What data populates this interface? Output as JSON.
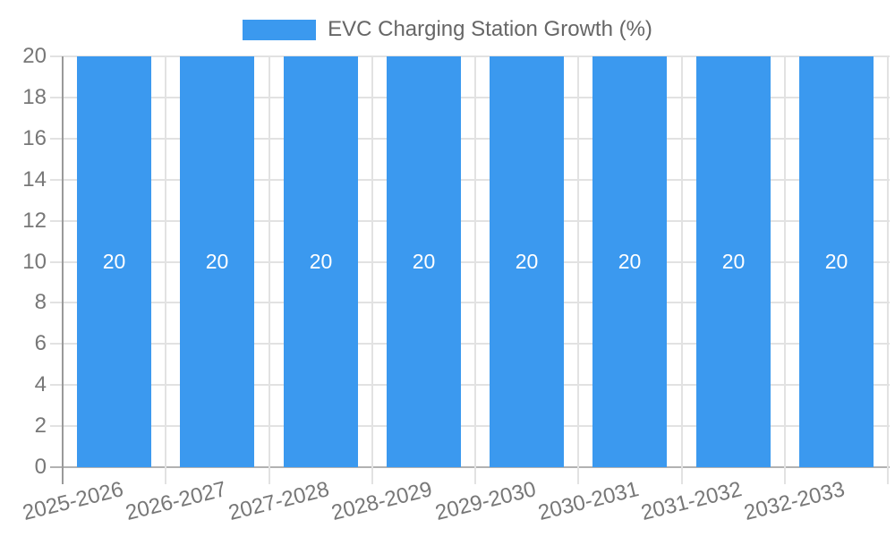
{
  "legend": {
    "label": "EVC Charging Station Growth (%)"
  },
  "chart_data": {
    "type": "bar",
    "title": "EVC Charging Station Growth (%)",
    "categories": [
      "2025-2026",
      "2026-2027",
      "2027-2028",
      "2028-2029",
      "2029-2030",
      "2030-2031",
      "2031-2032",
      "2032-2033"
    ],
    "series": [
      {
        "name": "EVC Charging Station Growth (%)",
        "values": [
          20,
          20,
          20,
          20,
          20,
          20,
          20,
          20
        ]
      }
    ],
    "bar_labels": [
      "20",
      "20",
      "20",
      "20",
      "20",
      "20",
      "20",
      "20"
    ],
    "xlabel": "",
    "ylabel": "",
    "ylim": [
      0,
      20
    ],
    "yticks": [
      0,
      2,
      4,
      6,
      8,
      10,
      12,
      14,
      16,
      18,
      20
    ],
    "grid": true,
    "legend_position": "top",
    "colors": {
      "bar": "#3b99ef",
      "grid": "#e2e2e2",
      "axis_y": "#999999",
      "axis_x": "#b2b2b2",
      "tick_text": "#777777",
      "legend_text": "#666666",
      "bar_label": "#ffffff"
    }
  }
}
